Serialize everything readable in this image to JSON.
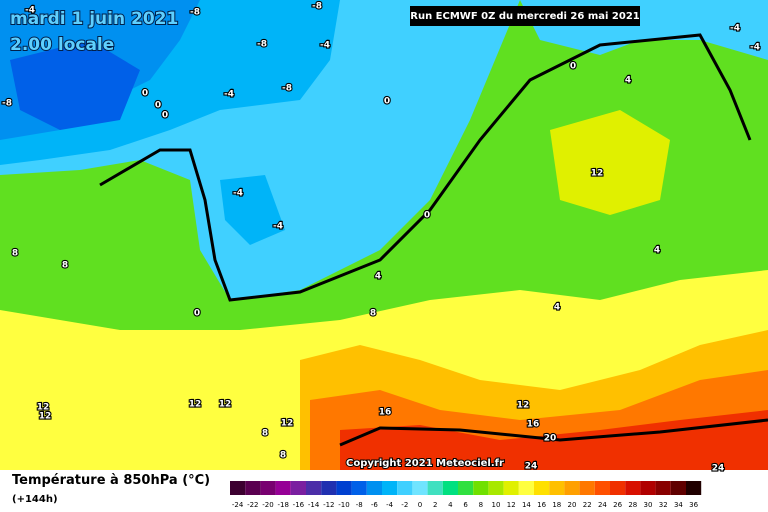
{
  "header": {
    "title": "mardi 1 juin 2021",
    "subtitle": "2.00 locale",
    "run_info": "Run ECMWF 0Z du mercredi 26 mai 2021",
    "copyright": "Copyright 2021 Meteociel.fr"
  },
  "legend": {
    "title": "Température à 850hPa (°C)",
    "lead_time": "(+144h)",
    "scale": {
      "values": [
        -24,
        -22,
        -20,
        -18,
        -16,
        -14,
        -12,
        -10,
        -8,
        -6,
        -4,
        -2,
        0,
        2,
        4,
        6,
        8,
        10,
        12,
        14,
        16,
        18,
        20,
        22,
        24,
        26,
        28,
        30,
        32,
        34,
        36
      ],
      "colors": [
        "#3c0030",
        "#5a0050",
        "#780070",
        "#960096",
        "#7a1fa0",
        "#4b2ea8",
        "#2030b0",
        "#0040d0",
        "#0060e8",
        "#0090f0",
        "#00b4f8",
        "#40d0ff",
        "#70e4ff",
        "#40e0c0",
        "#00e080",
        "#30e040",
        "#70e000",
        "#a8e800",
        "#e0f000",
        "#ffff40",
        "#ffe000",
        "#ffc000",
        "#ffa000",
        "#ff7800",
        "#ff5000",
        "#f03000",
        "#d81000",
        "#b00000",
        "#880000",
        "#600000",
        "#200000"
      ]
    }
  },
  "map_labels": [
    -4,
    -8,
    -8,
    -8,
    -4,
    -8,
    -4,
    0,
    0,
    0,
    -8,
    -4,
    -4,
    8,
    8,
    0,
    0,
    0,
    4,
    -4,
    -4,
    12,
    0,
    4,
    8,
    4,
    4,
    12,
    12,
    12,
    12,
    12,
    8,
    8,
    16,
    12,
    16,
    20,
    24,
    24
  ]
}
